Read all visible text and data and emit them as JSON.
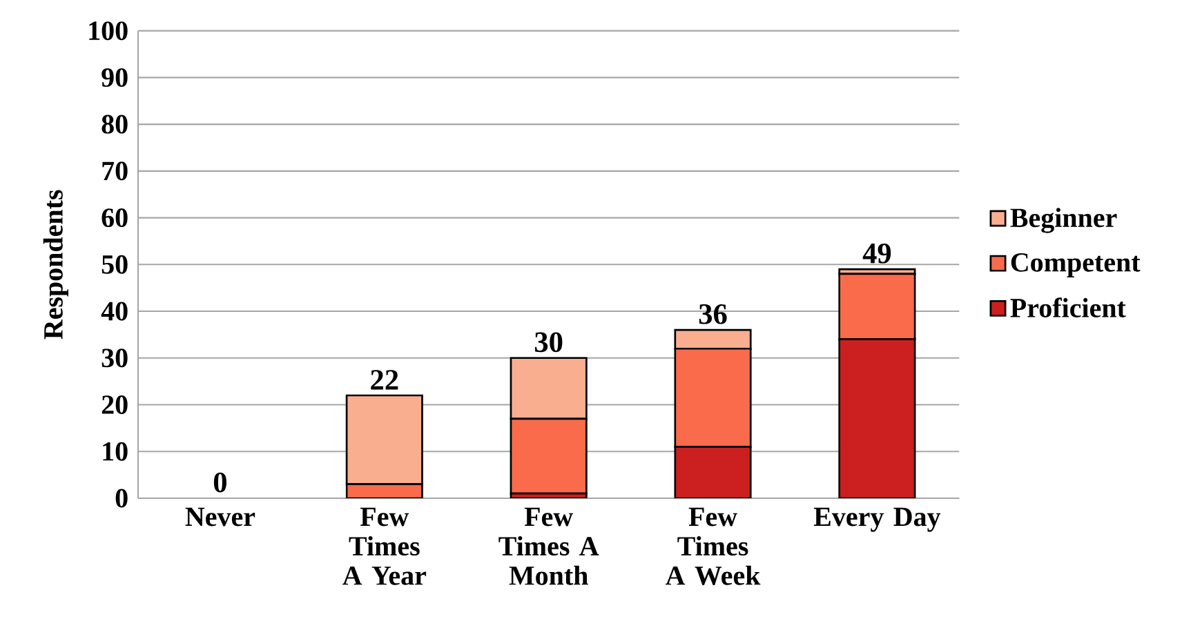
{
  "chart_data": {
    "type": "bar",
    "stacked": true,
    "ylabel": "Respondents",
    "categories": [
      "Never",
      "Few Times A Year",
      "Few Times A Month",
      "Few Times A Week",
      "Every Day"
    ],
    "series": [
      {
        "name": "Proficient",
        "color": "#cc1f1f",
        "values": [
          0,
          0,
          1,
          11,
          34
        ]
      },
      {
        "name": "Competent",
        "color": "#f96b4b",
        "values": [
          0,
          3,
          16,
          21,
          14
        ]
      },
      {
        "name": "Beginner",
        "color": "#f9ae90",
        "values": [
          0,
          19,
          13,
          4,
          1
        ]
      }
    ],
    "totals": [
      "0",
      "22",
      "30",
      "36",
      "49"
    ],
    "ylim": [
      0,
      100
    ],
    "yticks": [
      0,
      10,
      20,
      30,
      40,
      50,
      60,
      70,
      80,
      90,
      100
    ],
    "grid": "y",
    "legend": "right"
  }
}
